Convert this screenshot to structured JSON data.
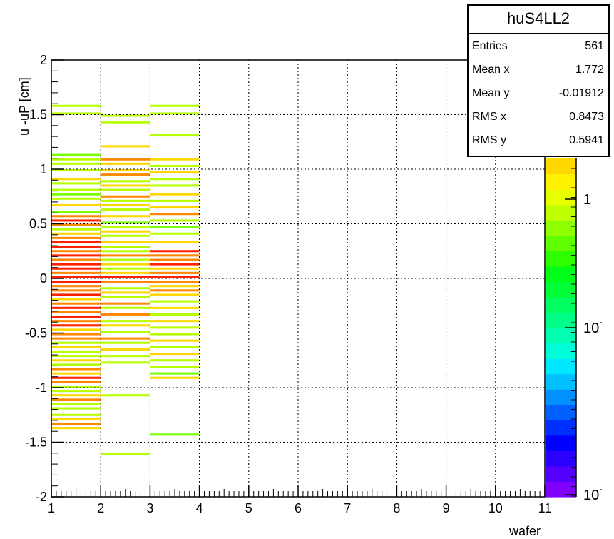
{
  "stats": {
    "title": "huS4LL2",
    "rows": [
      {
        "label": "Entries",
        "value": "561"
      },
      {
        "label": "Mean x",
        "value": "1.772"
      },
      {
        "label": "Mean y",
        "value": "-0.01912"
      },
      {
        "label": "RMS x",
        "value": "0.8473"
      },
      {
        "label": "RMS y",
        "value": "0.5941"
      }
    ]
  },
  "colorbar": {
    "tick_labels": [
      "1",
      "10˙",
      "10˙"
    ],
    "palette": [
      "#7f00ff",
      "#5500ff",
      "#2b00ff",
      "#0000ff",
      "#0030ff",
      "#0060ff",
      "#0090ff",
      "#00c0ff",
      "#00e8ff",
      "#00ffd8",
      "#00ffb0",
      "#00ff88",
      "#00ff60",
      "#00ff38",
      "#00ff18",
      "#30ff00",
      "#60ff00",
      "#90ff00",
      "#c0ff00",
      "#e8ff00",
      "#fff000",
      "#ffd800"
    ]
  },
  "chart_data": {
    "type": "heatmap",
    "title": "",
    "xlabel": "wafer",
    "ylabel": "u -uP [cm]",
    "xlim": [
      1,
      11
    ],
    "ylim": [
      -2,
      2
    ],
    "x_ticks": [
      "1",
      "2",
      "3",
      "4",
      "5",
      "6",
      "7",
      "8",
      "9",
      "10",
      "11"
    ],
    "y_ticks": [
      "-2",
      "-1.5",
      "-1",
      "-0.5",
      "0",
      "0.5",
      "1",
      "1.5",
      "2"
    ],
    "grid": true,
    "bin_height": 0.02,
    "colors": {
      "red": "#ff2200",
      "orange": "#ff8800",
      "yellow": "#ffd800",
      "lime": "#b8ff00",
      "green": "#78ff00"
    },
    "cells": [
      {
        "x": 1,
        "y": 1.57,
        "c": "lime"
      },
      {
        "x": 1,
        "y": 1.5,
        "c": "lime"
      },
      {
        "x": 1,
        "y": 1.12,
        "c": "green"
      },
      {
        "x": 1,
        "y": 1.08,
        "c": "lime"
      },
      {
        "x": 1,
        "y": 1.04,
        "c": "lime"
      },
      {
        "x": 1,
        "y": 0.98,
        "c": "lime"
      },
      {
        "x": 1,
        "y": 0.9,
        "c": "yellow"
      },
      {
        "x": 1,
        "y": 0.86,
        "c": "lime"
      },
      {
        "x": 1,
        "y": 0.8,
        "c": "lime"
      },
      {
        "x": 1,
        "y": 0.76,
        "c": "green"
      },
      {
        "x": 1,
        "y": 0.72,
        "c": "lime"
      },
      {
        "x": 1,
        "y": 0.66,
        "c": "yellow"
      },
      {
        "x": 1,
        "y": 0.6,
        "c": "green"
      },
      {
        "x": 1,
        "y": 0.56,
        "c": "orange"
      },
      {
        "x": 1,
        "y": 0.52,
        "c": "red"
      },
      {
        "x": 1,
        "y": 0.48,
        "c": "orange"
      },
      {
        "x": 1,
        "y": 0.44,
        "c": "lime"
      },
      {
        "x": 1,
        "y": 0.4,
        "c": "yellow"
      },
      {
        "x": 1,
        "y": 0.36,
        "c": "orange"
      },
      {
        "x": 1,
        "y": 0.32,
        "c": "red"
      },
      {
        "x": 1,
        "y": 0.28,
        "c": "red"
      },
      {
        "x": 1,
        "y": 0.24,
        "c": "orange"
      },
      {
        "x": 1,
        "y": 0.2,
        "c": "red"
      },
      {
        "x": 1,
        "y": 0.16,
        "c": "orange"
      },
      {
        "x": 1,
        "y": 0.12,
        "c": "red"
      },
      {
        "x": 1,
        "y": 0.08,
        "c": "red"
      },
      {
        "x": 1,
        "y": 0.04,
        "c": "orange"
      },
      {
        "x": 1,
        "y": 0.0,
        "c": "red"
      },
      {
        "x": 1,
        "y": -0.04,
        "c": "red"
      },
      {
        "x": 1,
        "y": -0.08,
        "c": "orange"
      },
      {
        "x": 1,
        "y": -0.12,
        "c": "orange"
      },
      {
        "x": 1,
        "y": -0.16,
        "c": "red"
      },
      {
        "x": 1,
        "y": -0.2,
        "c": "yellow"
      },
      {
        "x": 1,
        "y": -0.24,
        "c": "orange"
      },
      {
        "x": 1,
        "y": -0.28,
        "c": "red"
      },
      {
        "x": 1,
        "y": -0.32,
        "c": "orange"
      },
      {
        "x": 1,
        "y": -0.36,
        "c": "red"
      },
      {
        "x": 1,
        "y": -0.4,
        "c": "orange"
      },
      {
        "x": 1,
        "y": -0.44,
        "c": "red"
      },
      {
        "x": 1,
        "y": -0.48,
        "c": "yellow"
      },
      {
        "x": 1,
        "y": -0.52,
        "c": "orange"
      },
      {
        "x": 1,
        "y": -0.56,
        "c": "orange"
      },
      {
        "x": 1,
        "y": -0.6,
        "c": "lime"
      },
      {
        "x": 1,
        "y": -0.64,
        "c": "yellow"
      },
      {
        "x": 1,
        "y": -0.68,
        "c": "lime"
      },
      {
        "x": 1,
        "y": -0.72,
        "c": "lime"
      },
      {
        "x": 1,
        "y": -0.76,
        "c": "yellow"
      },
      {
        "x": 1,
        "y": -0.8,
        "c": "lime"
      },
      {
        "x": 1,
        "y": -0.84,
        "c": "orange"
      },
      {
        "x": 1,
        "y": -0.88,
        "c": "yellow"
      },
      {
        "x": 1,
        "y": -0.92,
        "c": "red"
      },
      {
        "x": 1,
        "y": -0.96,
        "c": "orange"
      },
      {
        "x": 1,
        "y": -1.0,
        "c": "lime"
      },
      {
        "x": 1,
        "y": -1.04,
        "c": "lime"
      },
      {
        "x": 1,
        "y": -1.08,
        "c": "yellow"
      },
      {
        "x": 1,
        "y": -1.12,
        "c": "orange"
      },
      {
        "x": 1,
        "y": -1.16,
        "c": "lime"
      },
      {
        "x": 1,
        "y": -1.2,
        "c": "lime"
      },
      {
        "x": 1,
        "y": -1.26,
        "c": "lime"
      },
      {
        "x": 1,
        "y": -1.3,
        "c": "yellow"
      },
      {
        "x": 1,
        "y": -1.34,
        "c": "orange"
      },
      {
        "x": 1,
        "y": -1.38,
        "c": "yellow"
      },
      {
        "x": 2,
        "y": 1.48,
        "c": "lime"
      },
      {
        "x": 2,
        "y": 1.42,
        "c": "lime"
      },
      {
        "x": 2,
        "y": 1.2,
        "c": "yellow"
      },
      {
        "x": 2,
        "y": 1.08,
        "c": "orange"
      },
      {
        "x": 2,
        "y": 1.04,
        "c": "yellow"
      },
      {
        "x": 2,
        "y": 0.98,
        "c": "yellow"
      },
      {
        "x": 2,
        "y": 0.94,
        "c": "orange"
      },
      {
        "x": 2,
        "y": 0.88,
        "c": "lime"
      },
      {
        "x": 2,
        "y": 0.84,
        "c": "yellow"
      },
      {
        "x": 2,
        "y": 0.8,
        "c": "lime"
      },
      {
        "x": 2,
        "y": 0.74,
        "c": "orange"
      },
      {
        "x": 2,
        "y": 0.7,
        "c": "lime"
      },
      {
        "x": 2,
        "y": 0.66,
        "c": "yellow"
      },
      {
        "x": 2,
        "y": 0.62,
        "c": "lime"
      },
      {
        "x": 2,
        "y": 0.56,
        "c": "yellow"
      },
      {
        "x": 2,
        "y": 0.5,
        "c": "green"
      },
      {
        "x": 2,
        "y": 0.46,
        "c": "lime"
      },
      {
        "x": 2,
        "y": 0.42,
        "c": "yellow"
      },
      {
        "x": 2,
        "y": 0.38,
        "c": "lime"
      },
      {
        "x": 2,
        "y": 0.32,
        "c": "yellow"
      },
      {
        "x": 2,
        "y": 0.28,
        "c": "lime"
      },
      {
        "x": 2,
        "y": 0.24,
        "c": "lime"
      },
      {
        "x": 2,
        "y": 0.2,
        "c": "orange"
      },
      {
        "x": 2,
        "y": 0.16,
        "c": "lime"
      },
      {
        "x": 2,
        "y": 0.12,
        "c": "yellow"
      },
      {
        "x": 2,
        "y": 0.08,
        "c": "lime"
      },
      {
        "x": 2,
        "y": 0.04,
        "c": "yellow"
      },
      {
        "x": 2,
        "y": 0.0,
        "c": "red"
      },
      {
        "x": 2,
        "y": -0.04,
        "c": "orange"
      },
      {
        "x": 2,
        "y": -0.1,
        "c": "lime"
      },
      {
        "x": 2,
        "y": -0.14,
        "c": "yellow"
      },
      {
        "x": 2,
        "y": -0.18,
        "c": "lime"
      },
      {
        "x": 2,
        "y": -0.24,
        "c": "orange"
      },
      {
        "x": 2,
        "y": -0.28,
        "c": "lime"
      },
      {
        "x": 2,
        "y": -0.34,
        "c": "orange"
      },
      {
        "x": 2,
        "y": -0.4,
        "c": "lime"
      },
      {
        "x": 2,
        "y": -0.44,
        "c": "yellow"
      },
      {
        "x": 2,
        "y": -0.5,
        "c": "lime"
      },
      {
        "x": 2,
        "y": -0.56,
        "c": "orange"
      },
      {
        "x": 2,
        "y": -0.6,
        "c": "lime"
      },
      {
        "x": 2,
        "y": -0.66,
        "c": "yellow"
      },
      {
        "x": 2,
        "y": -0.72,
        "c": "lime"
      },
      {
        "x": 2,
        "y": -0.78,
        "c": "lime"
      },
      {
        "x": 2,
        "y": -1.08,
        "c": "lime"
      },
      {
        "x": 2,
        "y": -1.62,
        "c": "lime"
      },
      {
        "x": 3,
        "y": 1.57,
        "c": "lime"
      },
      {
        "x": 3,
        "y": 1.5,
        "c": "lime"
      },
      {
        "x": 3,
        "y": 1.3,
        "c": "lime"
      },
      {
        "x": 3,
        "y": 1.08,
        "c": "yellow"
      },
      {
        "x": 3,
        "y": 1.02,
        "c": "lime"
      },
      {
        "x": 3,
        "y": 0.96,
        "c": "yellow"
      },
      {
        "x": 3,
        "y": 0.9,
        "c": "lime"
      },
      {
        "x": 3,
        "y": 0.84,
        "c": "lime"
      },
      {
        "x": 3,
        "y": 0.76,
        "c": "yellow"
      },
      {
        "x": 3,
        "y": 0.7,
        "c": "lime"
      },
      {
        "x": 3,
        "y": 0.64,
        "c": "yellow"
      },
      {
        "x": 3,
        "y": 0.58,
        "c": "orange"
      },
      {
        "x": 3,
        "y": 0.52,
        "c": "lime"
      },
      {
        "x": 3,
        "y": 0.46,
        "c": "green"
      },
      {
        "x": 3,
        "y": 0.4,
        "c": "lime"
      },
      {
        "x": 3,
        "y": 0.32,
        "c": "yellow"
      },
      {
        "x": 3,
        "y": 0.24,
        "c": "red"
      },
      {
        "x": 3,
        "y": 0.2,
        "c": "orange"
      },
      {
        "x": 3,
        "y": 0.16,
        "c": "orange"
      },
      {
        "x": 3,
        "y": 0.12,
        "c": "red"
      },
      {
        "x": 3,
        "y": 0.08,
        "c": "yellow"
      },
      {
        "x": 3,
        "y": 0.04,
        "c": "orange"
      },
      {
        "x": 3,
        "y": 0.0,
        "c": "red"
      },
      {
        "x": 3,
        "y": -0.04,
        "c": "orange"
      },
      {
        "x": 3,
        "y": -0.08,
        "c": "yellow"
      },
      {
        "x": 3,
        "y": -0.12,
        "c": "orange"
      },
      {
        "x": 3,
        "y": -0.16,
        "c": "yellow"
      },
      {
        "x": 3,
        "y": -0.22,
        "c": "lime"
      },
      {
        "x": 3,
        "y": -0.28,
        "c": "yellow"
      },
      {
        "x": 3,
        "y": -0.34,
        "c": "lime"
      },
      {
        "x": 3,
        "y": -0.4,
        "c": "yellow"
      },
      {
        "x": 3,
        "y": -0.46,
        "c": "lime"
      },
      {
        "x": 3,
        "y": -0.52,
        "c": "lime"
      },
      {
        "x": 3,
        "y": -0.58,
        "c": "yellow"
      },
      {
        "x": 3,
        "y": -0.64,
        "c": "lime"
      },
      {
        "x": 3,
        "y": -0.7,
        "c": "yellow"
      },
      {
        "x": 3,
        "y": -0.76,
        "c": "lime"
      },
      {
        "x": 3,
        "y": -0.82,
        "c": "lime"
      },
      {
        "x": 3,
        "y": -0.88,
        "c": "green"
      },
      {
        "x": 3,
        "y": -0.92,
        "c": "yellow"
      },
      {
        "x": 3,
        "y": -1.44,
        "c": "green"
      }
    ]
  }
}
